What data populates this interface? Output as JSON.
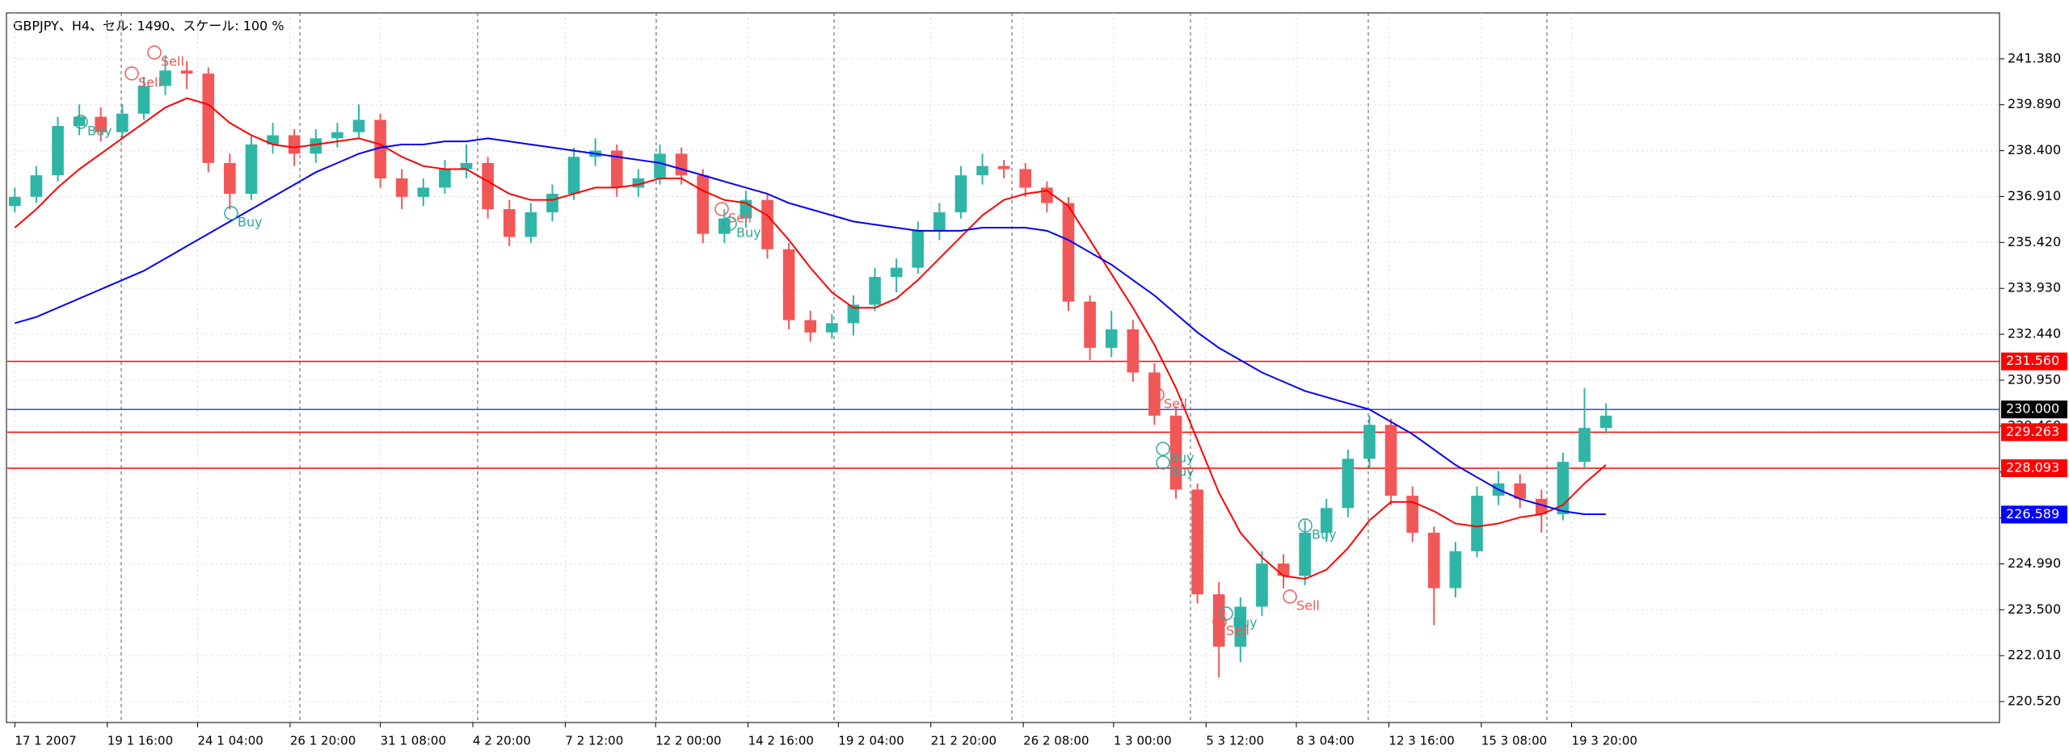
{
  "chart_data": {
    "type": "candlestick",
    "title": "GBPJPY、H4、セル: 1490、スケール: 100 %",
    "up_color": "#2fb5a6",
    "down_color": "#f25757",
    "grid": true,
    "xlim": [
      -0.2,
      92.3
    ],
    "ylim": [
      219.84,
      242.87
    ],
    "yticks": [
      {
        "value": 241.38,
        "label": "241.380"
      },
      {
        "value": 239.89,
        "label": "239.890"
      },
      {
        "value": 238.4,
        "label": "238.400"
      },
      {
        "value": 236.91,
        "label": "236.910"
      },
      {
        "value": 235.42,
        "label": "235.420"
      },
      {
        "value": 233.93,
        "label": "233.930"
      },
      {
        "value": 232.44,
        "label": "232.440"
      },
      {
        "value": 230.95,
        "label": "230.950"
      },
      {
        "value": 229.46,
        "label": "229.460"
      },
      {
        "value": 227.97,
        "label": "227.970"
      },
      {
        "value": 226.48,
        "label": "226.480"
      },
      {
        "value": 224.99,
        "label": "224.990"
      },
      {
        "value": 223.5,
        "label": "223.500"
      },
      {
        "value": 222.01,
        "label": "222.010"
      },
      {
        "value": 220.52,
        "label": "220.520"
      }
    ],
    "xticks": [
      {
        "value": 0,
        "label": "17 1 2007"
      },
      {
        "value": 4.3,
        "label": "19 1 16:00"
      },
      {
        "value": 8.5,
        "label": "24 1 04:00"
      },
      {
        "value": 12.8,
        "label": "26 1 20:00"
      },
      {
        "value": 17,
        "label": "31 1 08:00"
      },
      {
        "value": 21.3,
        "label": "4 2 20:00"
      },
      {
        "value": 25.6,
        "label": "7 2 12:00"
      },
      {
        "value": 29.8,
        "label": "12 2 00:00"
      },
      {
        "value": 34.1,
        "label": "14 2 16:00"
      },
      {
        "value": 38.3,
        "label": "19 2 04:00"
      },
      {
        "value": 42.6,
        "label": "21 2 20:00"
      },
      {
        "value": 46.9,
        "label": "26 2 08:00"
      },
      {
        "value": 51.1,
        "label": "1 3 00:00"
      },
      {
        "value": 55.4,
        "label": "5 3 12:00"
      },
      {
        "value": 59.6,
        "label": "8 3 04:00"
      },
      {
        "value": 63.9,
        "label": "12 3 16:00"
      },
      {
        "value": 68.2,
        "label": "15 3 08:00"
      },
      {
        "value": 72.4,
        "label": "19 3 20:00"
      }
    ],
    "ohlc": [
      [
        236.6,
        237.2,
        236.4,
        236.9
      ],
      [
        236.9,
        237.9,
        236.7,
        237.6
      ],
      [
        237.6,
        239.5,
        237.4,
        239.2
      ],
      [
        239.2,
        239.9,
        238.9,
        239.5
      ],
      [
        239.5,
        239.8,
        238.7,
        239.0
      ],
      [
        239.0,
        239.9,
        238.8,
        239.6
      ],
      [
        239.6,
        240.8,
        239.4,
        240.5
      ],
      [
        240.5,
        241.5,
        240.2,
        241.0
      ],
      [
        241.0,
        241.3,
        240.4,
        240.9
      ],
      [
        240.9,
        241.1,
        237.7,
        238.0
      ],
      [
        238.0,
        238.3,
        236.5,
        237.0
      ],
      [
        237.0,
        238.9,
        236.8,
        238.6
      ],
      [
        238.6,
        239.3,
        238.3,
        238.9
      ],
      [
        238.9,
        239.1,
        237.9,
        238.3
      ],
      [
        238.3,
        239.1,
        238.0,
        238.8
      ],
      [
        238.8,
        239.3,
        238.5,
        239.0
      ],
      [
        239.0,
        239.9,
        238.8,
        239.4
      ],
      [
        239.4,
        239.6,
        237.2,
        237.5
      ],
      [
        237.5,
        237.8,
        236.5,
        236.9
      ],
      [
        236.9,
        237.5,
        236.6,
        237.2
      ],
      [
        237.2,
        238.1,
        237.0,
        237.8
      ],
      [
        237.8,
        238.6,
        237.5,
        238.0
      ],
      [
        238.0,
        238.2,
        236.2,
        236.5
      ],
      [
        236.5,
        236.8,
        235.3,
        235.6
      ],
      [
        235.6,
        236.7,
        235.4,
        236.4
      ],
      [
        236.4,
        237.3,
        236.1,
        237.0
      ],
      [
        237.0,
        238.5,
        236.8,
        238.2
      ],
      [
        238.2,
        238.8,
        237.9,
        238.4
      ],
      [
        238.4,
        238.6,
        236.9,
        237.2
      ],
      [
        237.2,
        237.8,
        236.9,
        237.5
      ],
      [
        237.5,
        238.6,
        237.3,
        238.3
      ],
      [
        238.3,
        238.5,
        237.3,
        237.6
      ],
      [
        237.6,
        237.8,
        235.4,
        235.7
      ],
      [
        235.7,
        236.5,
        235.4,
        236.2
      ],
      [
        236.2,
        237.1,
        235.9,
        236.8
      ],
      [
        236.8,
        237.0,
        234.9,
        235.2
      ],
      [
        235.2,
        235.4,
        232.6,
        232.9
      ],
      [
        232.9,
        233.2,
        232.2,
        232.5
      ],
      [
        232.5,
        233.1,
        232.3,
        232.8
      ],
      [
        232.8,
        233.7,
        232.4,
        233.4
      ],
      [
        233.4,
        234.6,
        233.2,
        234.3
      ],
      [
        234.3,
        234.9,
        233.8,
        234.6
      ],
      [
        234.6,
        236.1,
        234.4,
        235.8
      ],
      [
        235.8,
        236.7,
        235.5,
        236.4
      ],
      [
        236.4,
        237.9,
        236.2,
        237.6
      ],
      [
        237.6,
        238.3,
        237.3,
        237.9
      ],
      [
        237.9,
        238.1,
        237.5,
        237.8
      ],
      [
        237.8,
        238.0,
        236.9,
        237.2
      ],
      [
        237.2,
        237.4,
        236.4,
        236.7
      ],
      [
        236.7,
        236.9,
        233.2,
        233.5
      ],
      [
        233.5,
        233.7,
        231.6,
        232.0
      ],
      [
        232.0,
        233.2,
        231.7,
        232.6
      ],
      [
        232.6,
        232.9,
        230.9,
        231.2
      ],
      [
        231.2,
        231.5,
        229.5,
        229.8
      ],
      [
        229.8,
        230.1,
        227.1,
        227.4
      ],
      [
        227.4,
        227.6,
        223.7,
        224.0
      ],
      [
        224.0,
        224.4,
        221.3,
        222.3
      ],
      [
        222.3,
        223.9,
        221.8,
        223.6
      ],
      [
        223.6,
        225.4,
        223.3,
        225.0
      ],
      [
        225.0,
        225.3,
        224.2,
        224.6
      ],
      [
        224.6,
        226.4,
        224.3,
        226.0
      ],
      [
        226.0,
        227.1,
        225.7,
        226.8
      ],
      [
        226.8,
        228.7,
        226.5,
        228.4
      ],
      [
        228.4,
        229.8,
        228.1,
        229.5
      ],
      [
        229.5,
        229.7,
        226.9,
        227.2
      ],
      [
        227.2,
        227.5,
        225.7,
        226.0
      ],
      [
        226.0,
        226.2,
        223.0,
        224.2
      ],
      [
        224.2,
        225.7,
        223.9,
        225.4
      ],
      [
        225.4,
        227.5,
        225.2,
        227.2
      ],
      [
        227.2,
        228.0,
        226.9,
        227.6
      ],
      [
        227.6,
        227.9,
        226.8,
        227.1
      ],
      [
        227.1,
        227.4,
        226.0,
        226.6
      ],
      [
        226.6,
        228.6,
        226.4,
        228.3
      ],
      [
        228.3,
        230.7,
        228.1,
        229.4
      ],
      [
        229.4,
        230.2,
        229.2,
        229.8
      ]
    ],
    "lines": [
      {
        "color": "#ff0000",
        "values": [
          235.9,
          236.5,
          237.2,
          237.8,
          238.3,
          238.8,
          239.3,
          239.8,
          240.1,
          239.9,
          239.3,
          238.9,
          238.6,
          238.5,
          238.6,
          238.7,
          238.8,
          238.6,
          238.2,
          237.9,
          237.8,
          237.8,
          237.4,
          237.0,
          236.8,
          236.8,
          237.0,
          237.2,
          237.2,
          237.3,
          237.5,
          237.5,
          237.1,
          236.8,
          236.7,
          236.3,
          235.5,
          234.6,
          233.8,
          233.3,
          233.3,
          233.6,
          234.2,
          234.9,
          235.6,
          236.3,
          236.8,
          237.0,
          237.1,
          236.6,
          235.5,
          234.4,
          233.3,
          232.1,
          230.7,
          229.0,
          227.3,
          226.0,
          225.2,
          224.6,
          224.5,
          224.8,
          225.5,
          226.4,
          227.0,
          227.0,
          226.7,
          226.3,
          226.2,
          226.3,
          226.5,
          226.6,
          226.9,
          227.6,
          228.2
        ]
      },
      {
        "color": "#0000ff",
        "values": [
          232.8,
          233.0,
          233.3,
          233.6,
          233.9,
          234.2,
          234.5,
          234.9,
          235.3,
          235.7,
          236.1,
          236.5,
          236.9,
          237.3,
          237.7,
          238.0,
          238.3,
          238.5,
          238.6,
          238.6,
          238.7,
          238.7,
          238.8,
          238.7,
          238.6,
          238.5,
          238.4,
          238.3,
          238.2,
          238.1,
          238.0,
          237.8,
          237.6,
          237.4,
          237.2,
          237.0,
          236.7,
          236.5,
          236.3,
          236.1,
          236.0,
          235.9,
          235.8,
          235.8,
          235.8,
          235.9,
          235.9,
          235.9,
          235.8,
          235.5,
          235.1,
          234.7,
          234.2,
          233.7,
          233.1,
          232.5,
          232.0,
          231.6,
          231.2,
          230.9,
          230.6,
          230.4,
          230.2,
          230.0,
          229.6,
          229.2,
          228.7,
          228.2,
          227.8,
          227.4,
          227.1,
          226.9,
          226.7,
          226.6,
          226.6
        ]
      }
    ],
    "levels": [
      {
        "value": 231.56,
        "label": "231.560",
        "color": "#ff0000",
        "line": true
      },
      {
        "value": 230.0,
        "label": "230.000",
        "color": "#000000",
        "line_color": "#3050c8",
        "line": true
      },
      {
        "value": 229.263,
        "label": "229.263",
        "color": "#ff0000",
        "line": true
      },
      {
        "value": 228.093,
        "label": "228.093",
        "color": "#ff0000",
        "line": true
      },
      {
        "value": 226.589,
        "label": "226.589",
        "color": "#0000ff",
        "line": false
      }
    ],
    "annotations": [
      {
        "text": "Buy",
        "color": "#2fa79b"
      },
      {
        "text": "Sell",
        "color": "#f25757"
      },
      {
        "text": "Sell",
        "color": "#f25757"
      },
      {
        "text": "Buy",
        "color": "#2fa79b"
      },
      {
        "text": "Sell",
        "color": "#f25757"
      },
      {
        "text": "Buy",
        "color": "#2fa79b"
      },
      {
        "text": "Sell",
        "color": "#f25757"
      },
      {
        "text": "Buy",
        "color": "#2fa79b"
      },
      {
        "text": "Buy",
        "color": "#2fa79b"
      },
      {
        "text": "Buy",
        "color": "#2fa79b"
      },
      {
        "text": "Sell",
        "color": "#f25757"
      },
      {
        "text": "Buy",
        "color": "#2fa79b"
      },
      {
        "text": "Sell",
        "color": "#f25757"
      }
    ]
  }
}
